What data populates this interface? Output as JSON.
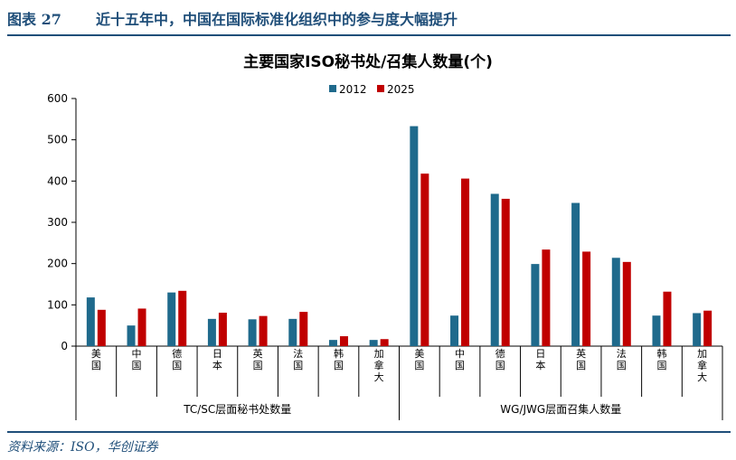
{
  "figure": {
    "label": "图表 27",
    "title": "近十五年中，中国在国际标准化组织中的参与度大幅提升",
    "source": "资料来源：ISO，华创证券"
  },
  "colors": {
    "s2012": "#1f6a8c",
    "s2025": "#c00000",
    "header": "#1f4e79"
  },
  "chart_data": {
    "type": "bar",
    "title": "主要国家ISO秘书处/召集人数量(个)",
    "xlabel": "",
    "ylabel": "",
    "ylim": [
      0,
      600
    ],
    "yticks": [
      "0",
      "100",
      "200",
      "300",
      "400",
      "500",
      "600"
    ],
    "grid": false,
    "legend": "top-center",
    "categories": [
      "美国",
      "中国",
      "德国",
      "日本",
      "英国",
      "法国",
      "韩国",
      "加拿大",
      "美国",
      "中国",
      "德国",
      "日本",
      "英国",
      "法国",
      "韩国",
      "加拿大"
    ],
    "groups": [
      {
        "label": "TC/SC层面秘书处数量",
        "count": 8
      },
      {
        "label": "WG/JWG层面召集人数量",
        "count": 8
      }
    ],
    "series": [
      {
        "name": "2012",
        "values": [
          118,
          50,
          130,
          66,
          65,
          66,
          15,
          15,
          533,
          74,
          369,
          199,
          347,
          214,
          74,
          80
        ]
      },
      {
        "name": "2025",
        "values": [
          88,
          91,
          134,
          81,
          73,
          83,
          24,
          17,
          418,
          406,
          357,
          234,
          229,
          204,
          132,
          86
        ]
      }
    ]
  }
}
